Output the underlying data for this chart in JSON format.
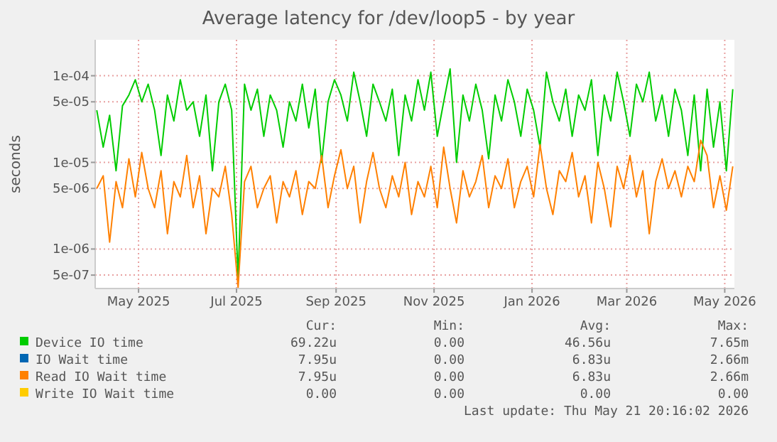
{
  "chart_data": {
    "type": "line",
    "title": "Average latency for /dev/loop5 - by year",
    "ylabel": "seconds",
    "log": "y",
    "grid": true,
    "legend": "bottom",
    "marker": "none",
    "line_style": "solid",
    "xlim": [
      "2025-04-04",
      "2026-05-07"
    ],
    "xticks": [
      {
        "value": "2025-05-01",
        "label": "May 2025"
      },
      {
        "value": "2025-07-01",
        "label": "Jul 2025"
      },
      {
        "value": "2025-09-01",
        "label": "Sep 2025"
      },
      {
        "value": "2025-11-01",
        "label": "Nov 2025"
      },
      {
        "value": "2026-01-01",
        "label": "Jan 2026"
      },
      {
        "value": "2026-03-01",
        "label": "Mar 2026"
      },
      {
        "value": "2026-05-01",
        "label": "May 2026"
      }
    ],
    "ylim": [
      3.5e-07,
      0.00026
    ],
    "yticks": [
      {
        "value": 5e-07,
        "label": "5e-07"
      },
      {
        "value": 1e-06,
        "label": "1e-06"
      },
      {
        "value": 5e-06,
        "label": "5e-06"
      },
      {
        "value": 1e-05,
        "label": "1e-05"
      },
      {
        "value": 5e-05,
        "label": "5e-05"
      },
      {
        "value": 0.0001,
        "label": "1e-04"
      }
    ],
    "x": [
      "2025-04-05",
      "2025-04-09",
      "2025-04-13",
      "2025-04-17",
      "2025-04-21",
      "2025-04-25",
      "2025-04-29",
      "2025-05-03",
      "2025-05-07",
      "2025-05-11",
      "2025-05-15",
      "2025-05-19",
      "2025-05-23",
      "2025-05-27",
      "2025-05-31",
      "2025-06-04",
      "2025-06-08",
      "2025-06-12",
      "2025-06-16",
      "2025-06-20",
      "2025-06-24",
      "2025-06-28",
      "2025-07-02",
      "2025-07-06",
      "2025-07-10",
      "2025-07-14",
      "2025-07-18",
      "2025-07-22",
      "2025-07-26",
      "2025-07-30",
      "2025-08-03",
      "2025-08-07",
      "2025-08-11",
      "2025-08-15",
      "2025-08-19",
      "2025-08-23",
      "2025-08-27",
      "2025-08-31",
      "2025-09-04",
      "2025-09-08",
      "2025-09-12",
      "2025-09-16",
      "2025-09-20",
      "2025-09-24",
      "2025-09-28",
      "2025-10-02",
      "2025-10-06",
      "2025-10-10",
      "2025-10-14",
      "2025-10-18",
      "2025-10-22",
      "2025-10-26",
      "2025-10-30",
      "2025-11-03",
      "2025-11-07",
      "2025-11-11",
      "2025-11-15",
      "2025-11-19",
      "2025-11-23",
      "2025-11-27",
      "2025-12-01",
      "2025-12-05",
      "2025-12-09",
      "2025-12-13",
      "2025-12-17",
      "2025-12-21",
      "2025-12-25",
      "2025-12-29",
      "2026-01-02",
      "2026-01-06",
      "2026-01-10",
      "2026-01-14",
      "2026-01-18",
      "2026-01-22",
      "2026-01-26",
      "2026-01-30",
      "2026-02-03",
      "2026-02-07",
      "2026-02-11",
      "2026-02-15",
      "2026-02-19",
      "2026-02-23",
      "2026-02-27",
      "2026-03-03",
      "2026-03-07",
      "2026-03-11",
      "2026-03-15",
      "2026-03-19",
      "2026-03-23",
      "2026-03-27",
      "2026-03-31",
      "2026-04-04",
      "2026-04-08",
      "2026-04-12",
      "2026-04-16",
      "2026-04-20",
      "2026-04-24",
      "2026-04-28",
      "2026-05-02",
      "2026-05-06"
    ],
    "series": [
      {
        "name": "Device IO time",
        "color": "#00cc00",
        "values": [
          4e-05,
          1.5e-05,
          3.5e-05,
          8e-06,
          4.5e-05,
          6e-05,
          9e-05,
          5e-05,
          8e-05,
          4e-05,
          1.2e-05,
          6e-05,
          3e-05,
          9e-05,
          4e-05,
          5e-05,
          2e-05,
          6e-05,
          8e-06,
          5e-05,
          8e-05,
          4e-05,
          4.5e-07,
          8e-05,
          4e-05,
          7e-05,
          2e-05,
          6e-05,
          4e-05,
          1.5e-05,
          5e-05,
          3e-05,
          8e-05,
          2.5e-05,
          7e-05,
          1e-05,
          5e-05,
          9e-05,
          6e-05,
          3e-05,
          0.00011,
          5e-05,
          2e-05,
          8e-05,
          5e-05,
          3e-05,
          7e-05,
          1.2e-05,
          6e-05,
          3e-05,
          9e-05,
          4e-05,
          0.00011,
          2e-05,
          5e-05,
          0.00012,
          1e-05,
          6e-05,
          3e-05,
          8e-05,
          4e-05,
          1.1e-05,
          6e-05,
          3e-05,
          9e-05,
          5e-05,
          2e-05,
          7e-05,
          4e-05,
          1.5e-05,
          0.00011,
          5e-05,
          3e-05,
          7e-05,
          2e-05,
          6e-05,
          4e-05,
          9e-05,
          1.2e-05,
          6e-05,
          3e-05,
          0.00011,
          5e-05,
          2e-05,
          8e-05,
          5e-05,
          0.00011,
          3e-05,
          6e-05,
          2e-05,
          7e-05,
          4e-05,
          1.2e-05,
          6e-05,
          8e-06,
          7e-05,
          1.5e-05,
          5e-05,
          8e-06,
          7e-05
        ]
      },
      {
        "name": "IO Wait time",
        "color": "#0066b3",
        "values": [
          null,
          null,
          null,
          null,
          null,
          null,
          null,
          null,
          null,
          null,
          null,
          null,
          null,
          null,
          null,
          null,
          null,
          null,
          null,
          null,
          null,
          null,
          null,
          null,
          null,
          null,
          null,
          null,
          null,
          null,
          null,
          null,
          null,
          null,
          null,
          null,
          null,
          null,
          null,
          null,
          null,
          null,
          null,
          null,
          null,
          null,
          null,
          null,
          null,
          null,
          null,
          null,
          null,
          null,
          null,
          null,
          null,
          null,
          null,
          null,
          null,
          null,
          null,
          null,
          null,
          null,
          null,
          null,
          null,
          null,
          null,
          null,
          null,
          null,
          null,
          null,
          null,
          null,
          null,
          null,
          null,
          null,
          null,
          null,
          null,
          null,
          null,
          null,
          null,
          null,
          null,
          null,
          null,
          null,
          null,
          null,
          null,
          null,
          null,
          null
        ]
      },
      {
        "name": "Read IO Wait time",
        "color": "#ff8000",
        "values": [
          5e-06,
          7e-06,
          1.2e-06,
          6e-06,
          3e-06,
          1.1e-05,
          4e-06,
          1.3e-05,
          5e-06,
          3e-06,
          8e-06,
          1.5e-06,
          6e-06,
          4e-06,
          1.2e-05,
          3e-06,
          7e-06,
          1.5e-06,
          5e-06,
          4e-06,
          9e-06,
          2.5e-06,
          3.6e-07,
          6e-06,
          9e-06,
          3e-06,
          5e-06,
          7e-06,
          2e-06,
          6e-06,
          4e-06,
          8e-06,
          2.5e-06,
          6e-06,
          5e-06,
          1.2e-05,
          3e-06,
          7e-06,
          1.4e-05,
          5e-06,
          9e-06,
          2e-06,
          6e-06,
          1.3e-05,
          5e-06,
          3e-06,
          7e-06,
          4e-06,
          1e-05,
          2.5e-06,
          6e-06,
          4e-06,
          9e-06,
          3e-06,
          1.5e-05,
          5e-06,
          2e-06,
          8e-06,
          4e-06,
          6e-06,
          1.2e-05,
          3e-06,
          7e-06,
          5e-06,
          1.1e-05,
          3e-06,
          6e-06,
          9e-06,
          4e-06,
          1.6e-05,
          5e-06,
          2.5e-06,
          8e-06,
          6e-06,
          1.3e-05,
          4e-06,
          7e-06,
          2e-06,
          1e-05,
          5e-06,
          1.8e-06,
          9e-06,
          5e-06,
          1.2e-05,
          4e-06,
          8e-06,
          1.5e-06,
          6e-06,
          1.1e-05,
          5e-06,
          8e-06,
          4e-06,
          9e-06,
          6e-06,
          1.8e-05,
          1.2e-05,
          3e-06,
          7e-06,
          2.8e-06,
          9e-06
        ]
      },
      {
        "name": "Write IO Wait time",
        "color": "#ffcc00",
        "values": [
          null,
          null,
          null,
          null,
          null,
          null,
          null,
          null,
          null,
          null,
          null,
          null,
          null,
          null,
          null,
          null,
          null,
          null,
          null,
          null,
          null,
          null,
          null,
          null,
          null,
          null,
          null,
          null,
          null,
          null,
          null,
          null,
          null,
          null,
          null,
          null,
          null,
          null,
          null,
          null,
          null,
          null,
          null,
          null,
          null,
          null,
          null,
          null,
          null,
          null,
          null,
          null,
          null,
          null,
          null,
          null,
          null,
          null,
          null,
          null,
          null,
          null,
          null,
          null,
          null,
          null,
          null,
          null,
          null,
          null,
          null,
          null,
          null,
          null,
          null,
          null,
          null,
          null,
          null,
          null,
          null,
          null,
          null,
          null,
          null,
          null,
          null,
          null,
          null,
          null,
          null,
          null,
          null,
          null,
          null,
          null,
          null,
          null,
          null,
          null
        ]
      }
    ],
    "annotations": [
      "Cur:",
      "Min:",
      "Avg:",
      "Max:",
      "69.22u",
      "0.00",
      "46.56u",
      "7.65m",
      "7.95u",
      "0.00",
      "6.83u",
      "2.66m",
      "7.95u",
      "0.00",
      "6.83u",
      "2.66m",
      "0.00",
      "0.00",
      "0.00",
      "0.00",
      "Last update: Thu May 21 20:16:02 2026"
    ]
  }
}
